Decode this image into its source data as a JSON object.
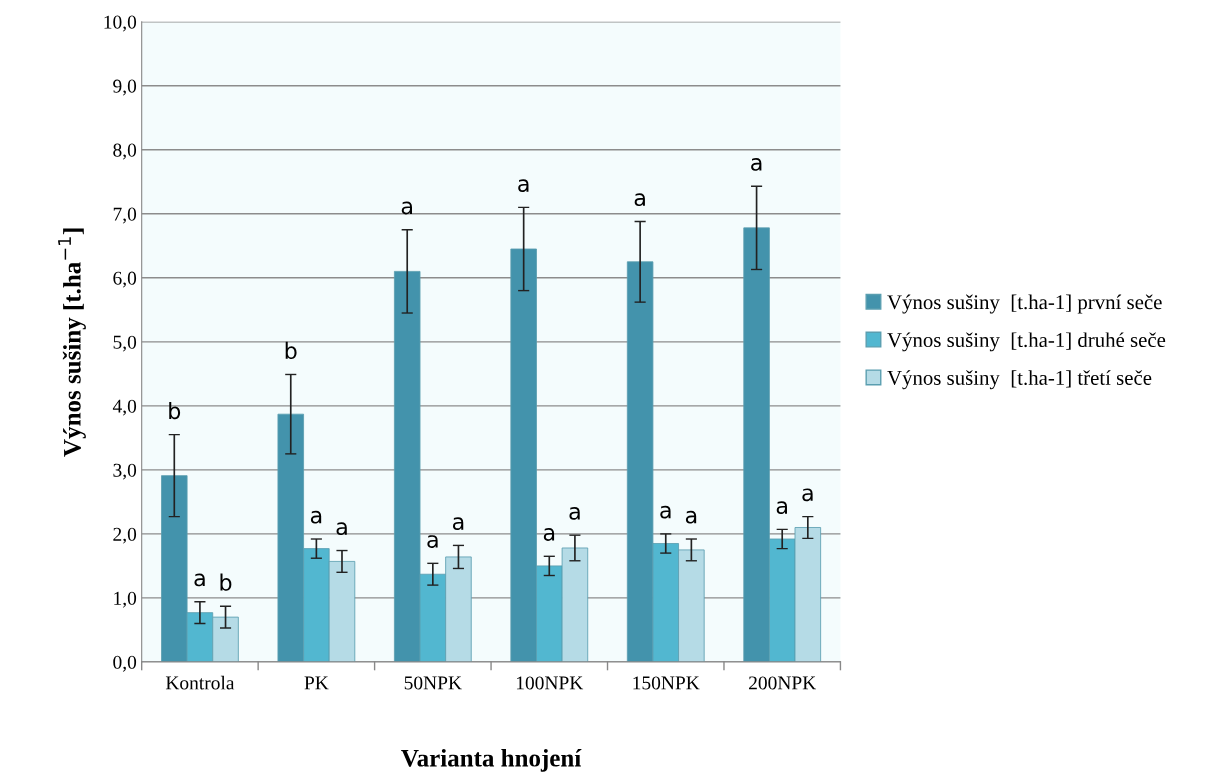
{
  "chart_data": {
    "type": "bar",
    "xlabel": "Varianta hnojení",
    "ylabel": "Výnos sušiny [t.ha$^{−1}$]",
    "categories": [
      "Kontrola",
      "PK",
      "50NPK",
      "100NPK",
      "150NPK",
      "200NPK"
    ],
    "series": [
      {
        "name": "Výnos sušiny  [t.ha-1] první seče",
        "color": "#4393ac",
        "values": [
          2.91,
          3.87,
          6.1,
          6.45,
          6.25,
          6.78
        ],
        "errors": [
          0.64,
          0.62,
          0.65,
          0.65,
          0.63,
          0.65
        ]
      },
      {
        "name": "Výnos sušiny  [t.ha-1] druhé seče",
        "color": "#52b7d0",
        "values": [
          0.77,
          1.77,
          1.37,
          1.5,
          1.85,
          1.92
        ],
        "errors": [
          0.17,
          0.15,
          0.17,
          0.15,
          0.15,
          0.15
        ]
      },
      {
        "name": "Výnos sušiny  [t.ha-1] třetí seče",
        "color": "#b5dbe6",
        "values": [
          0.7,
          1.57,
          1.64,
          1.78,
          1.75,
          2.1
        ],
        "errors": [
          0.17,
          0.17,
          0.18,
          0.2,
          0.17,
          0.17
        ]
      }
    ],
    "ylim": [
      0,
      10
    ],
    "yticks": [
      {
        "value": 0,
        "label": "0,0"
      },
      {
        "value": 1,
        "label": "1,0"
      },
      {
        "value": 2,
        "label": "2,0"
      },
      {
        "value": 3,
        "label": "3,0"
      },
      {
        "value": 4,
        "label": "4,0"
      },
      {
        "value": 5,
        "label": "5,0"
      },
      {
        "value": 6,
        "label": "6,0"
      },
      {
        "value": 7,
        "label": "7,0"
      },
      {
        "value": 8,
        "label": "8,0"
      },
      {
        "value": 9,
        "label": "9,0"
      },
      {
        "value": 10,
        "label": "10,0"
      }
    ],
    "grid": "y",
    "legend": "right",
    "annotations": [
      "b",
      "a",
      "b",
      "b",
      "a",
      "a",
      "a",
      "a",
      "a",
      "a",
      "a",
      "a",
      "a",
      "a",
      "a",
      "a",
      "a",
      "a"
    ]
  }
}
